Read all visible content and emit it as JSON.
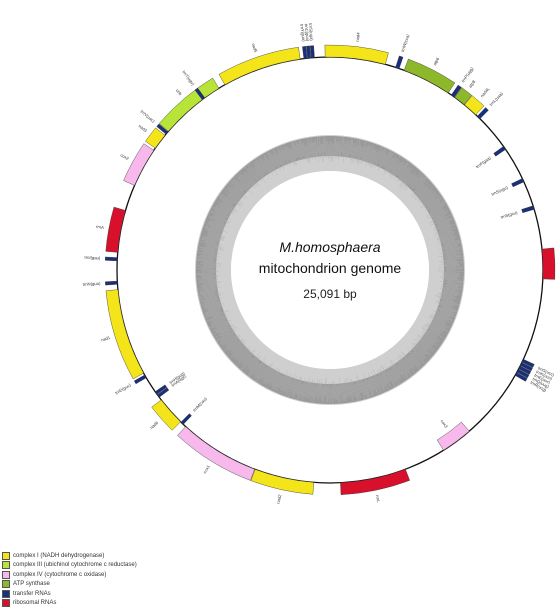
{
  "title": {
    "species": "M.homosphaera",
    "subtitle": "mitochondrion genome",
    "size": "25,091 bp"
  },
  "genome_length": 25091,
  "colors": {
    "complex_I": "#f4e41a",
    "complex_III": "#b8e43a",
    "complex_IV": "#f7b8ec",
    "atp": "#8cb82a",
    "trna": "#1a2f7a",
    "rrna": "#d8102c",
    "gc_dark": "#9a9a9a",
    "gc_light": "#cfcfcf"
  },
  "legend": [
    {
      "label": "complex I (NADH dehydrogenase)",
      "color": "#f4e41a"
    },
    {
      "label": "complex III (ubichinol cytochrome c reductase)",
      "color": "#b8e43a"
    },
    {
      "label": "complex IV (cytochrome c oxidase)",
      "color": "#f7b8ec"
    },
    {
      "label": "ATP synthase",
      "color": "#8cb82a"
    },
    {
      "label": "transfer RNAs",
      "color": "#1a2f7a"
    },
    {
      "label": "ribosomal RNAs",
      "color": "#d8102c"
    }
  ],
  "genes": [
    {
      "name": "nad4",
      "cls": "complex_I",
      "start": 25000,
      "end": 1050,
      "strand": "out"
    },
    {
      "name": "nad5",
      "cls": "complex_I",
      "start": 23030,
      "end": 24530,
      "strand": "out"
    },
    {
      "name": "trnW(cca)",
      "cls": "trna",
      "start": 1250,
      "end": 1320,
      "strand": "out"
    },
    {
      "name": "atp6",
      "cls": "atp",
      "start": 1420,
      "end": 2350,
      "strand": "out"
    },
    {
      "name": "trnP(ugg)",
      "cls": "trna",
      "start": 2420,
      "end": 2490,
      "strand": "out"
    },
    {
      "name": "atp8",
      "cls": "atp",
      "start": 2500,
      "end": 2720,
      "strand": "out"
    },
    {
      "name": "nad4L",
      "cls": "complex_I",
      "start": 2730,
      "end": 3010,
      "strand": "out"
    },
    {
      "name": "trnL(uaa)",
      "cls": "trna",
      "start": 3050,
      "end": 3120,
      "strand": "out"
    },
    {
      "name": "trnF(gaa)",
      "cls": "trna",
      "start": 3800,
      "end": 3870,
      "strand": "in"
    },
    {
      "name": "trnS(ugu)",
      "cls": "trna",
      "start": 4500,
      "end": 4570,
      "strand": "in"
    },
    {
      "name": "trnS(gcu)",
      "cls": "trna",
      "start": 5050,
      "end": 5120,
      "strand": "in"
    },
    {
      "name": "rrnS",
      "cls": "rrna",
      "start": 5880,
      "end": 6440,
      "strand": "out"
    },
    {
      "name": "trnG(ucc)",
      "cls": "trna",
      "start": 8000,
      "end": 8060,
      "strand": "out"
    },
    {
      "name": "trnK(uuu)",
      "cls": "trna",
      "start": 8070,
      "end": 8130,
      "strand": "out"
    },
    {
      "name": "trnE(uuc)",
      "cls": "trna",
      "start": 8140,
      "end": 8200,
      "strand": "out"
    },
    {
      "name": "trnQ(uug)",
      "cls": "trna",
      "start": 8210,
      "end": 8270,
      "strand": "out"
    },
    {
      "name": "trnR(ucg)",
      "cls": "trna",
      "start": 8280,
      "end": 8340,
      "strand": "out"
    },
    {
      "name": "cox3",
      "cls": "complex_IV",
      "start": 9700,
      "end": 10300,
      "strand": "in"
    },
    {
      "name": "rrnL",
      "cls": "rrna",
      "start": 11100,
      "end": 12350,
      "strand": "out"
    },
    {
      "name": "nad2",
      "cls": "complex_I",
      "start": 12850,
      "end": 13980,
      "strand": "out"
    },
    {
      "name": "cox1",
      "cls": "complex_IV",
      "start": 13990,
      "end": 15520,
      "strand": "out"
    },
    {
      "name": "trnM(cau)",
      "cls": "trna",
      "start": 15580,
      "end": 15640,
      "strand": "in"
    },
    {
      "name": "nad6",
      "cls": "complex_I",
      "start": 15650,
      "end": 16200,
      "strand": "out"
    },
    {
      "name": "trnA(ugc)",
      "cls": "trna",
      "start": 16260,
      "end": 16320,
      "strand": "in"
    },
    {
      "name": "trnH(gug)",
      "cls": "trna",
      "start": 16330,
      "end": 16390,
      "strand": "in"
    },
    {
      "name": "trnD(guc)",
      "cls": "trna",
      "start": 16700,
      "end": 16760,
      "strand": "out"
    },
    {
      "name": "nad1",
      "cls": "complex_I",
      "start": 16800,
      "end": 18450,
      "strand": "out"
    },
    {
      "name": "trnN(guu)",
      "cls": "trna",
      "start": 18550,
      "end": 18610,
      "strand": "out"
    },
    {
      "name": "trnI(gau)",
      "cls": "trna",
      "start": 18990,
      "end": 19050,
      "strand": "out"
    },
    {
      "name": "rrnA",
      "cls": "rrna",
      "start": 19150,
      "end": 19950,
      "strand": "out"
    },
    {
      "name": "cox2",
      "cls": "complex_IV",
      "start": 20450,
      "end": 21200,
      "strand": "out"
    },
    {
      "name": "nad3",
      "cls": "complex_I",
      "start": 21250,
      "end": 21550,
      "strand": "out"
    },
    {
      "name": "trnV(uac)",
      "cls": "trna",
      "start": 21580,
      "end": 21640,
      "strand": "out"
    },
    {
      "name": "cob",
      "cls": "complex_III",
      "start": 21650,
      "end": 22900,
      "strand": "out"
    },
    {
      "name": "trnT(ugu)",
      "cls": "trna",
      "start": 22520,
      "end": 22580,
      "strand": "out"
    },
    {
      "name": "trnY(gua)",
      "cls": "trna",
      "start": 24600,
      "end": 24660,
      "strand": "out"
    },
    {
      "name": "trnC(gca)",
      "cls": "trna",
      "start": 24670,
      "end": 24730,
      "strand": "out"
    },
    {
      "name": "trnS(uga)",
      "cls": "trna",
      "start": 24740,
      "end": 24800,
      "strand": "out"
    }
  ]
}
